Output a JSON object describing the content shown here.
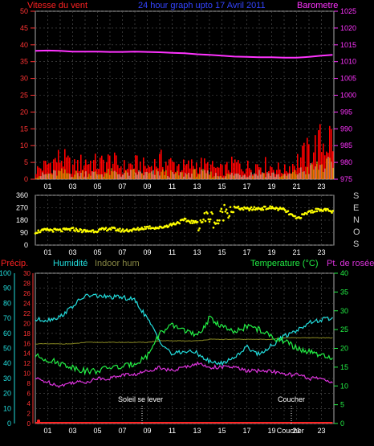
{
  "header": {
    "wind_title": "Vitesse du vent",
    "main_title": "24 hour graph upto 17 Avril 2011",
    "baro_title": "Barometre"
  },
  "middle": {
    "direction_letters": [
      "S",
      "E",
      "N",
      "O",
      "S"
    ]
  },
  "bottom_header": {
    "precip": "Précip.",
    "humidity": "Humidité",
    "indoor": "Indoor hum",
    "temperature": "Temperature (°C)",
    "dewpoint": "Pt. de rosée"
  },
  "annotations": {
    "sunrise": "Soleil se lever",
    "sunset": "Coucher",
    "sunset_axis": "Coucher"
  },
  "colors": {
    "wind": "#ff0000",
    "gust": "#ffff00",
    "baro": "#ff33ff",
    "direction": "#ffff00",
    "humidity": "#22dddd",
    "indoor": "#888822",
    "temperature": "#22ee44",
    "dewpoint": "#dd33dd",
    "precip": "#ff2222"
  },
  "chart_data": [
    {
      "type": "bar",
      "title": "24 hour graph upto 17 Avril 2011",
      "x": [
        0.0,
        1.0,
        2.0,
        3.0,
        4.0,
        5.0,
        6.0,
        7.0,
        8.0,
        9.0,
        10.0,
        11.0,
        12.0,
        13.0,
        14.0,
        15.0,
        16.0,
        17.0,
        18.0,
        19.0,
        20.0,
        21.0,
        22.0,
        23.0,
        23.9
      ],
      "xticks": [
        "01",
        "03",
        "05",
        "07",
        "09",
        "11",
        "13",
        "15",
        "17",
        "19",
        "21",
        "23"
      ],
      "ylabel": "Vitesse du vent",
      "ylim": [
        0,
        50
      ],
      "yticks": [
        0,
        5,
        10,
        15,
        20,
        25,
        30,
        35,
        40,
        45,
        50
      ],
      "y2label": "Barometre",
      "y2lim": [
        975,
        1025
      ],
      "y2ticks": [
        975,
        980,
        985,
        990,
        995,
        1000,
        1005,
        1010,
        1015,
        1020,
        1025
      ],
      "series": [
        {
          "name": "Vitesse du vent",
          "values": [
            3,
            5,
            7,
            4,
            6,
            5,
            6,
            4,
            5,
            4,
            6,
            5,
            4,
            5,
            4,
            3,
            5,
            4,
            5,
            4,
            3,
            6,
            9,
            12,
            14
          ]
        },
        {
          "values": [
            1,
            1.5,
            2,
            1.5,
            2,
            1.5,
            2,
            1.5,
            2,
            1.5,
            2,
            1.5,
            1.5,
            2,
            1.5,
            1,
            1.5,
            1.5,
            2,
            1.5,
            1,
            2,
            3,
            4,
            4
          ]
        },
        {
          "name": "Barometre",
          "values": [
            1013.2,
            1013.3,
            1013.2,
            1013.0,
            1013.0,
            1013.0,
            1012.9,
            1012.9,
            1013.0,
            1012.9,
            1012.8,
            1012.6,
            1012.5,
            1012.2,
            1012.0,
            1011.8,
            1011.5,
            1011.4,
            1011.3,
            1011.3,
            1011.2,
            1011.2,
            1011.4,
            1011.8,
            1012.0
          ]
        }
      ]
    },
    {
      "type": "scatter",
      "x": [
        0.0,
        1.0,
        2.0,
        3.0,
        4.0,
        5.0,
        6.0,
        7.0,
        8.0,
        9.0,
        10.0,
        11.0,
        12.0,
        13.0,
        14.0,
        14.6,
        15.2,
        16.0,
        17.0,
        18.0,
        19.0,
        20.0,
        21.0,
        22.0,
        23.0,
        23.9
      ],
      "xticks": [
        "01",
        "03",
        "05",
        "07",
        "09",
        "11",
        "13",
        "15",
        "17",
        "19",
        "21",
        "23"
      ],
      "ylim": [
        0,
        360
      ],
      "yticks": [
        0,
        90,
        180,
        270,
        360
      ],
      "series": [
        {
          "values": [
            95,
            110,
            105,
            115,
            100,
            105,
            120,
            105,
            110,
            130,
            125,
            150,
            180,
            160,
            210,
            160,
            250,
            270,
            260,
            265,
            270,
            255,
            190,
            240,
            260,
            240
          ]
        }
      ]
    },
    {
      "type": "line",
      "x": [
        0.0,
        1.0,
        2.0,
        3.0,
        4.0,
        5.0,
        6.0,
        7.0,
        8.0,
        9.0,
        10.0,
        11.0,
        12.0,
        13.0,
        14.0,
        15.0,
        16.0,
        17.0,
        18.0,
        19.0,
        20.0,
        21.0,
        22.0,
        23.0,
        23.9
      ],
      "xticks": [
        "01",
        "03",
        "05",
        "07",
        "09",
        "11",
        "13",
        "15",
        "17",
        "19",
        "21",
        "23"
      ],
      "x_extra_label": "Coucher",
      "ylabel": "Humidité",
      "ylim": [
        0,
        100
      ],
      "yticks": [
        0,
        10,
        20,
        30,
        40,
        50,
        60,
        70,
        80,
        90,
        100
      ],
      "precip_ticks": [
        0,
        2,
        4,
        6,
        8,
        10,
        12,
        14,
        16,
        18,
        20,
        22,
        24,
        26,
        28,
        30
      ],
      "y2label": "Temperature (°C)",
      "y2lim": [
        0,
        40
      ],
      "y2ticks": [
        0,
        5,
        10,
        15,
        20,
        25,
        30,
        35,
        40
      ],
      "series": [
        {
          "name": "Humidité",
          "values": [
            69,
            69,
            71,
            78,
            85,
            85,
            84,
            84,
            82,
            70,
            55,
            46,
            48,
            47,
            41,
            40,
            44,
            51,
            46,
            52,
            58,
            62,
            67,
            69,
            70
          ]
        },
        {
          "name": "Indoor hum",
          "values": [
            53,
            53,
            53,
            53,
            54,
            54,
            54,
            54,
            54,
            54,
            55,
            55,
            55,
            55,
            56,
            56,
            56,
            56,
            56,
            56,
            57,
            57,
            57,
            57,
            57
          ]
        },
        {
          "name": "Temperature (°C)",
          "values": [
            18,
            17,
            16,
            15,
            14,
            14,
            15,
            15,
            16,
            18,
            24,
            26,
            25,
            23,
            28,
            26,
            24,
            26,
            25,
            23,
            22,
            20,
            19,
            18,
            17
          ]
        },
        {
          "name": "Pt. de rosée",
          "values": [
            12,
            11,
            10,
            11,
            11,
            12,
            12,
            13,
            13,
            14,
            15,
            14,
            15,
            16,
            15,
            15,
            15,
            14,
            14,
            14,
            13,
            13,
            12,
            12,
            11
          ]
        },
        {
          "name": "Précip.",
          "values": [
            0,
            0,
            0,
            0,
            0,
            0,
            0,
            0,
            0,
            0,
            0,
            0,
            0,
            0,
            0,
            0,
            0,
            0,
            0,
            0,
            0,
            0,
            0,
            0,
            0
          ]
        }
      ]
    }
  ]
}
